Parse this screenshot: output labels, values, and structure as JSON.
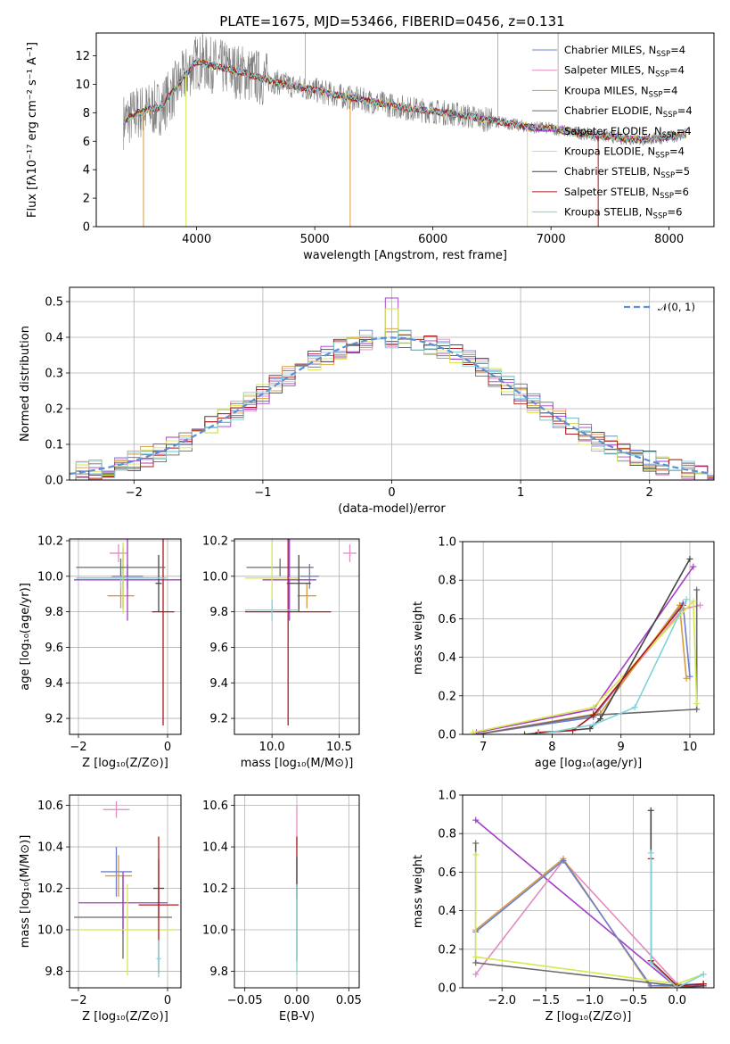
{
  "title": "PLATE=1675, MJD=53466, FIBERID=0456, z=0.131",
  "colors": {
    "Chabrier MILES": "#6b7fd1",
    "Salpeter MILES": "#e28bc3",
    "Kroupa MILES": "#d89a3a",
    "Chabrier ELODIE": "#6b6b6b",
    "Salpeter ELODIE": "#a63cc8",
    "Kroupa ELODIE": "#d4e84f",
    "Chabrier STELIB": "#444444",
    "Salpeter STELIB": "#b01818",
    "Kroupa STELIB": "#7fd3d8",
    "gaussian": "#5b8fd6"
  },
  "chart_data": [
    {
      "id": "spectrum",
      "type": "line",
      "xlabel": "wavelength [Angstrom, rest frame]",
      "ylabel": "Flux [fλ10⁻¹⁷ erg cm⁻² s⁻¹ A⁻¹]",
      "xlim": [
        3150,
        8380
      ],
      "ylim": [
        0,
        13.6
      ],
      "xticks": [
        "4000",
        "5000",
        "6000",
        "7000",
        "8000"
      ],
      "yticks": [
        "0",
        "2",
        "4",
        "6",
        "8",
        "10",
        "12"
      ],
      "grid": false,
      "legend": "top-right",
      "data_envelope_x": [
        3380,
        3500,
        3700,
        3900,
        4000,
        4200,
        4400,
        4600,
        4800,
        5000,
        5200,
        5400,
        5600,
        5800,
        6000,
        6200,
        6400,
        6600,
        6800,
        7000,
        7200,
        7400,
        7600,
        7800,
        8000,
        8150
      ],
      "data_envelope_y": [
        7.4,
        8.0,
        8.4,
        10.6,
        11.6,
        11.2,
        10.8,
        10.3,
        9.9,
        9.6,
        9.2,
        8.9,
        8.6,
        8.3,
        8.1,
        7.9,
        7.6,
        7.3,
        7.0,
        6.9,
        6.6,
        6.4,
        6.2,
        6.1,
        6.3,
        6.5
      ],
      "series": [
        {
          "name": "Chabrier MILES, N_SSP=4",
          "color_key": "Chabrier MILES"
        },
        {
          "name": "Salpeter MILES, N_SSP=4",
          "color_key": "Salpeter MILES"
        },
        {
          "name": "Kroupa MILES, N_SSP=4",
          "color_key": "Kroupa MILES"
        },
        {
          "name": "Chabrier ELODIE, N_SSP=4",
          "color_key": "Chabrier ELODIE"
        },
        {
          "name": "Salpeter ELODIE, N_SSP=4",
          "color_key": "Salpeter ELODIE"
        },
        {
          "name": "Kroupa ELODIE, N_SSP=4",
          "color_key": "Kroupa ELODIE"
        },
        {
          "name": "Chabrier STELIB, N_SSP=5",
          "color_key": "Chabrier STELIB"
        },
        {
          "name": "Salpeter STELIB, N_SSP=6",
          "color_key": "Salpeter STELIB"
        },
        {
          "name": "Kroupa STELIB, N_SSP=6",
          "color_key": "Kroupa STELIB"
        }
      ]
    },
    {
      "id": "residuals",
      "type": "bar",
      "xlabel": "(data-model)/error",
      "ylabel": "Normed distribution",
      "xlim": [
        -2.5,
        2.5
      ],
      "ylim": [
        0,
        0.54
      ],
      "xticks": [
        "−2",
        "−1",
        "0",
        "1",
        "2"
      ],
      "yticks": [
        "0.0",
        "0.1",
        "0.2",
        "0.3",
        "0.4",
        "0.5"
      ],
      "grid": true,
      "legend": "top-right",
      "legend_label": "𝒩(0, 1)",
      "bin_width": 0.1,
      "peak_values": [
        0.51,
        0.48
      ]
    },
    {
      "id": "age-vs-Z",
      "type": "scatter",
      "xlabel": "Z [log₁₀(Z/Z⊙)]",
      "ylabel": "age  [log₁₀(age/yr)]",
      "xlim": [
        -2.2,
        0.3
      ],
      "ylim": [
        9.11,
        10.21
      ],
      "xticks": [
        "−2",
        "0"
      ],
      "yticks": [
        "9.2",
        "9.4",
        "9.6",
        "9.8",
        "10.0",
        "10.2"
      ],
      "grid": true,
      "points": [
        {
          "k": "Chabrier MILES",
          "x": -0.9,
          "y": 10.0,
          "xe": 0.35,
          "ye": 0.07
        },
        {
          "k": "Salpeter MILES",
          "x": -1.1,
          "y": 10.13,
          "xe": 0.2,
          "ye": 0.05
        },
        {
          "k": "Kroupa MILES",
          "x": -1.05,
          "y": 9.89,
          "xe": 0.3,
          "ye": 0.07
        },
        {
          "k": "Chabrier ELODIE",
          "x": -1.0,
          "y": 9.99,
          "xe": 0.3,
          "ye": 0.17
        },
        {
          "k": "Salpeter ELODIE",
          "x": -0.9,
          "y": 9.98,
          "xe": 1.2,
          "ye": 0.23
        },
        {
          "k": "Kroupa ELODIE",
          "x": -1.0,
          "y": 9.99,
          "xe": 1.0,
          "ye": 0.2
        },
        {
          "k": "Chabrier STELIB",
          "x": -0.2,
          "y": 9.96,
          "xe": 0.07,
          "ye": 0.16
        },
        {
          "k": "Salpeter STELIB",
          "x": -0.1,
          "y": 9.8,
          "xe": 0.25,
          "ye": 0.64
        },
        {
          "k": "Kroupa STELIB",
          "x": -1.05,
          "y": 9.99,
          "xe": 1.0,
          "ye": 0.06
        },
        {
          "k": "Chabrier ELODIE",
          "x": -1.05,
          "y": 10.05,
          "xe": 1.0,
          "ye": 0.05
        }
      ]
    },
    {
      "id": "age-vs-mass",
      "type": "scatter",
      "xlabel": "mass [log₁₀(M/M⊙)]",
      "ylabel": "",
      "xlim": [
        9.72,
        10.65
      ],
      "ylim": [
        9.11,
        10.21
      ],
      "xticks": [
        "10.0",
        "10.5"
      ],
      "yticks": [
        "9.2",
        "9.4",
        "9.6",
        "9.8",
        "10.0",
        "10.2"
      ],
      "grid": true,
      "points": [
        {
          "k": "Chabrier MILES",
          "x": 10.28,
          "y": 10.0,
          "xe": 0.07,
          "ye": 0.07
        },
        {
          "k": "Salpeter MILES",
          "x": 10.58,
          "y": 10.13,
          "xe": 0.05,
          "ye": 0.05
        },
        {
          "k": "Kroupa MILES",
          "x": 10.26,
          "y": 9.89,
          "xe": 0.07,
          "ye": 0.07
        },
        {
          "k": "Chabrier ELODIE",
          "x": 10.06,
          "y": 10.05,
          "xe": 0.25,
          "ye": 0.05
        },
        {
          "k": "Salpeter ELODIE",
          "x": 10.13,
          "y": 9.98,
          "xe": 0.2,
          "ye": 0.23
        },
        {
          "k": "Kroupa ELODIE",
          "x": 10.0,
          "y": 9.99,
          "xe": 0.2,
          "ye": 0.2
        },
        {
          "k": "Chabrier STELIB",
          "x": 10.2,
          "y": 9.96,
          "xe": 0.09,
          "ye": 0.16
        },
        {
          "k": "Salpeter STELIB",
          "x": 10.12,
          "y": 9.8,
          "xe": 0.32,
          "ye": 0.64
        },
        {
          "k": "Kroupa STELIB",
          "x": 10.0,
          "y": 9.81,
          "xe": 0.2,
          "ye": 0.06
        }
      ]
    },
    {
      "id": "weight-vs-age",
      "type": "line",
      "xlabel": "age  [log₁₀(age/yr)]",
      "ylabel": "mass weight",
      "xlim": [
        6.7,
        10.35
      ],
      "ylim": [
        0,
        1.0
      ],
      "xticks": [
        "7",
        "8",
        "9",
        "10"
      ],
      "yticks": [
        "0.0",
        "0.2",
        "0.4",
        "0.6",
        "0.8",
        "1.0"
      ],
      "grid": true,
      "series": [
        {
          "k": "Chabrier MILES",
          "x": [
            6.9,
            8.6,
            9.9,
            10.0
          ],
          "y": [
            0.0,
            0.09,
            0.68,
            0.3
          ]
        },
        {
          "k": "Salpeter MILES",
          "x": [
            6.9,
            8.6,
            9.9,
            10.15
          ],
          "y": [
            0.0,
            0.1,
            0.65,
            0.67
          ]
        },
        {
          "k": "Kroupa MILES",
          "x": [
            6.9,
            8.7,
            9.85,
            9.95
          ],
          "y": [
            0.0,
            0.11,
            0.67,
            0.29
          ]
        },
        {
          "k": "Chabrier ELODIE",
          "x": [
            6.9,
            8.6,
            10.1,
            10.1
          ],
          "y": [
            0.0,
            0.1,
            0.13,
            0.75
          ]
        },
        {
          "k": "Salpeter ELODIE",
          "x": [
            6.9,
            8.6,
            10.05
          ],
          "y": [
            0.01,
            0.13,
            0.87
          ]
        },
        {
          "k": "Kroupa ELODIE",
          "x": [
            6.85,
            8.6,
            10.05,
            10.1
          ],
          "y": [
            0.01,
            0.14,
            0.69,
            0.16
          ]
        },
        {
          "k": "Chabrier STELIB",
          "x": [
            7.6,
            8.55,
            8.7,
            10.0
          ],
          "y": [
            0.0,
            0.03,
            0.08,
            0.91
          ]
        },
        {
          "k": "Salpeter STELIB",
          "x": [
            7.8,
            8.3,
            8.6,
            9.9
          ],
          "y": [
            0.01,
            0.02,
            0.1,
            0.67
          ]
        },
        {
          "k": "Kroupa STELIB",
          "x": [
            7.8,
            8.6,
            9.2,
            9.95
          ],
          "y": [
            0.0,
            0.05,
            0.14,
            0.7
          ]
        }
      ]
    },
    {
      "id": "mass-vs-Z",
      "type": "scatter",
      "xlabel": "Z [log₁₀(Z/Z⊙)]",
      "ylabel": "mass [log₁₀(M/M⊙)]",
      "xlim": [
        -2.2,
        0.3
      ],
      "ylim": [
        9.72,
        10.65
      ],
      "xticks": [
        "−2",
        "0"
      ],
      "yticks": [
        "9.8",
        "10.0",
        "10.2",
        "10.4",
        "10.6"
      ],
      "grid": true,
      "points": [
        {
          "k": "Chabrier MILES",
          "x": -1.15,
          "y": 10.28,
          "xe": 0.35,
          "ye": 0.12
        },
        {
          "k": "Salpeter MILES",
          "x": -1.15,
          "y": 10.58,
          "xe": 0.3,
          "ye": 0.04
        },
        {
          "k": "Kroupa MILES",
          "x": -1.1,
          "y": 10.26,
          "xe": 0.3,
          "ye": 0.1
        },
        {
          "k": "Chabrier ELODIE",
          "x": -1.0,
          "y": 10.06,
          "xe": 1.1,
          "ye": 0.2
        },
        {
          "k": "Salpeter ELODIE",
          "x": -1.0,
          "y": 10.13,
          "xe": 1.0,
          "ye": 0.15
        },
        {
          "k": "Kroupa ELODIE",
          "x": -0.9,
          "y": 10.0,
          "xe": 1.1,
          "ye": 0.22
        },
        {
          "k": "Chabrier STELIB",
          "x": -0.2,
          "y": 10.2,
          "xe": 0.12,
          "ye": 0.14
        },
        {
          "k": "Salpeter STELIB",
          "x": -0.2,
          "y": 10.12,
          "xe": 0.45,
          "ye": 0.33
        },
        {
          "k": "Kroupa STELIB",
          "x": -0.2,
          "y": 9.86,
          "xe": 0.05,
          "ye": 0.09
        }
      ]
    },
    {
      "id": "mass-vs-EBV",
      "type": "scatter",
      "xlabel": "E(B-V)",
      "ylabel": "",
      "xlim": [
        -0.06,
        0.06
      ],
      "ylim": [
        9.72,
        10.65
      ],
      "xticks": [
        "−0.05",
        "0.00",
        "0.05"
      ],
      "yticks": [
        "9.8",
        "10.0",
        "10.2",
        "10.4",
        "10.6"
      ],
      "grid": true,
      "points": [
        {
          "k": "Salpeter MILES",
          "x": 0.0,
          "y": 10.5,
          "xe": 0.0,
          "ye": 0.1
        },
        {
          "k": "Salpeter STELIB",
          "x": 0.0,
          "y": 10.3,
          "xe": 0.0,
          "ye": 0.15
        },
        {
          "k": "Chabrier STELIB",
          "x": 0.0,
          "y": 10.1,
          "xe": 0.0,
          "ye": 0.25
        },
        {
          "k": "Kroupa STELIB",
          "x": 0.0,
          "y": 10.0,
          "xe": 0.0,
          "ye": 0.22
        }
      ]
    },
    {
      "id": "weight-vs-Z",
      "type": "line",
      "xlabel": "Z [log₁₀(Z/Z⊙)]",
      "ylabel": "mass weight",
      "xlim": [
        -2.45,
        0.42
      ],
      "ylim": [
        0,
        1.0
      ],
      "xticks": [
        "−2.0",
        "−1.5",
        "−1.0",
        "−0.5",
        "0.0"
      ],
      "yticks": [
        "0.0",
        "0.2",
        "0.4",
        "0.6",
        "0.8",
        "1.0"
      ],
      "grid": true,
      "series": [
        {
          "k": "Salpeter ELODIE",
          "x": [
            -2.3,
            0.0,
            0.3
          ],
          "y": [
            0.87,
            0.0,
            0.02
          ]
        },
        {
          "k": "Salpeter MILES",
          "x": [
            -2.3,
            -1.3,
            0.0,
            0.3
          ],
          "y": [
            0.07,
            0.66,
            0.02,
            0.0
          ]
        },
        {
          "k": "Kroupa MILES",
          "x": [
            -2.3,
            -1.3,
            -0.3,
            0.3
          ],
          "y": [
            0.3,
            0.67,
            0.0,
            0.02
          ]
        },
        {
          "k": "Chabrier MILES",
          "x": [
            -2.3,
            -1.3,
            -0.3,
            0.3
          ],
          "y": [
            0.29,
            0.66,
            0.01,
            0.02
          ]
        },
        {
          "k": "Chabrier ELODIE",
          "x": [
            -2.3,
            -2.3,
            0.0,
            0.3
          ],
          "y": [
            0.75,
            0.13,
            0.01,
            0.02
          ]
        },
        {
          "k": "Kroupa ELODIE",
          "x": [
            -2.3,
            -2.3,
            0.0,
            0.3
          ],
          "y": [
            0.69,
            0.16,
            0.02,
            0.07
          ]
        },
        {
          "k": "Chabrier STELIB",
          "x": [
            -0.3,
            -0.3,
            0.0,
            0.3
          ],
          "y": [
            0.92,
            0.14,
            0.0,
            0.01
          ]
        },
        {
          "k": "Salpeter STELIB",
          "x": [
            -0.3,
            -0.3,
            0.0,
            0.3
          ],
          "y": [
            0.67,
            0.14,
            0.01,
            0.02
          ]
        },
        {
          "k": "Kroupa STELIB",
          "x": [
            -0.3,
            -0.3,
            0.0,
            0.3
          ],
          "y": [
            0.7,
            0.13,
            0.0,
            0.07
          ]
        }
      ]
    }
  ]
}
